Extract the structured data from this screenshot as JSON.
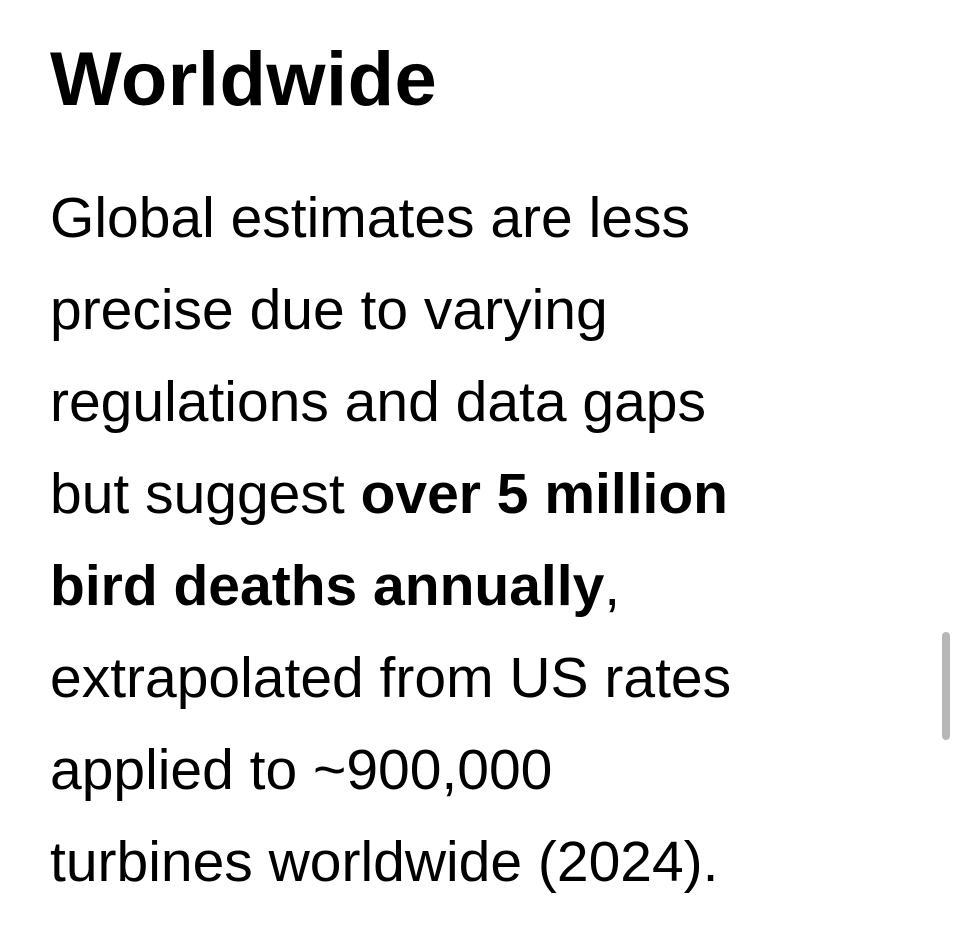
{
  "article": {
    "heading": "Worldwide",
    "lines": [
      {
        "text": "Global estimates are less"
      },
      {
        "text": "precise due to varying"
      },
      {
        "text": "regulations and data gaps"
      },
      {
        "before": "but suggest ",
        "bold": "over 5 million"
      },
      {
        "bold": "bird deaths annually",
        "after": ","
      },
      {
        "text": "extrapolated from US rates"
      },
      {
        "text": "applied to ~900,000"
      },
      {
        "text": "turbines worldwide (2024)."
      }
    ]
  }
}
